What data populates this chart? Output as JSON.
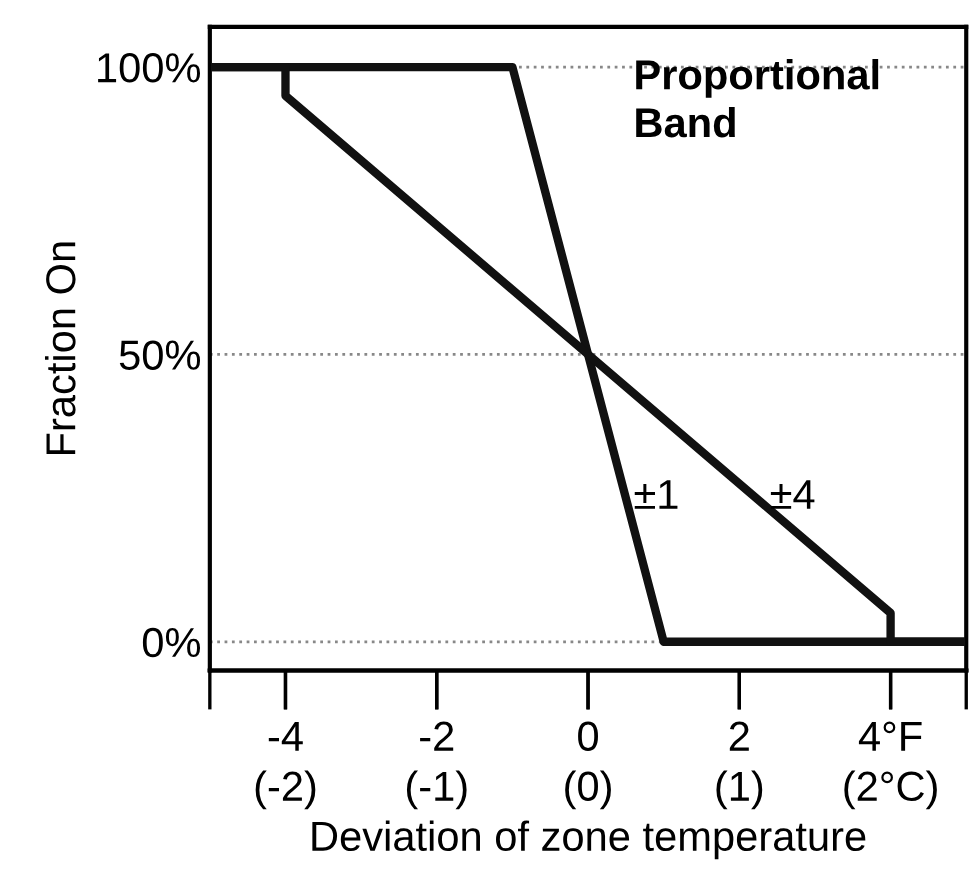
{
  "chart_data": {
    "type": "line",
    "xlabel": "Deviation of zone temperature",
    "ylabel": "Fraction On",
    "series": [
      {
        "color": "#111111",
        "x": [
          -5,
          -1,
          1,
          5
        ],
        "values": [
          100,
          100,
          0,
          0
        ]
      },
      {
        "color": "#111111",
        "x": [
          -5,
          -4,
          -4,
          4,
          4,
          5
        ],
        "values": [
          100,
          100,
          95,
          5,
          0,
          0
        ]
      }
    ],
    "xlim": [
      -5,
      5
    ],
    "ylim": [
      -5,
      107
    ],
    "xticks": [
      -4,
      -2,
      0,
      2,
      {
        "value": 4,
        "label": "4°F"
      }
    ],
    "x2lim": [
      -2.5,
      2.5
    ],
    "x2ticks": [
      {
        "value": -2.5,
        "label": null
      },
      {
        "value": -2,
        "label": "(-2)"
      },
      {
        "value": -1,
        "label": "(-1)"
      },
      {
        "value": 0,
        "label": "(0)"
      },
      {
        "value": 1,
        "label": "(1)"
      },
      {
        "value": 2,
        "label": "(2°C)"
      },
      {
        "value": 2.5,
        "label": null
      }
    ],
    "yticks": [
      {
        "value": 0,
        "label": "0%"
      },
      {
        "value": 50,
        "label": "50%"
      },
      {
        "value": 100,
        "label": "100%"
      }
    ],
    "ref_lines": [
      {
        "axis": "y",
        "value": 100,
        "color": "#888888",
        "line_style": "dotted"
      },
      {
        "axis": "y",
        "value": 50,
        "color": "#888888",
        "line_style": "dotted"
      },
      {
        "axis": "y",
        "value": 0,
        "color": "#888888",
        "line_style": "dotted"
      }
    ],
    "annotations": [
      "Proportional\nBand",
      {
        "text": "±1",
        "x": 0.6,
        "y": 25
      },
      {
        "text": "±4",
        "x": 2.4,
        "y": 25
      }
    ],
    "grid": false,
    "legend": false,
    "marker": "none",
    "line_style": "solid"
  }
}
